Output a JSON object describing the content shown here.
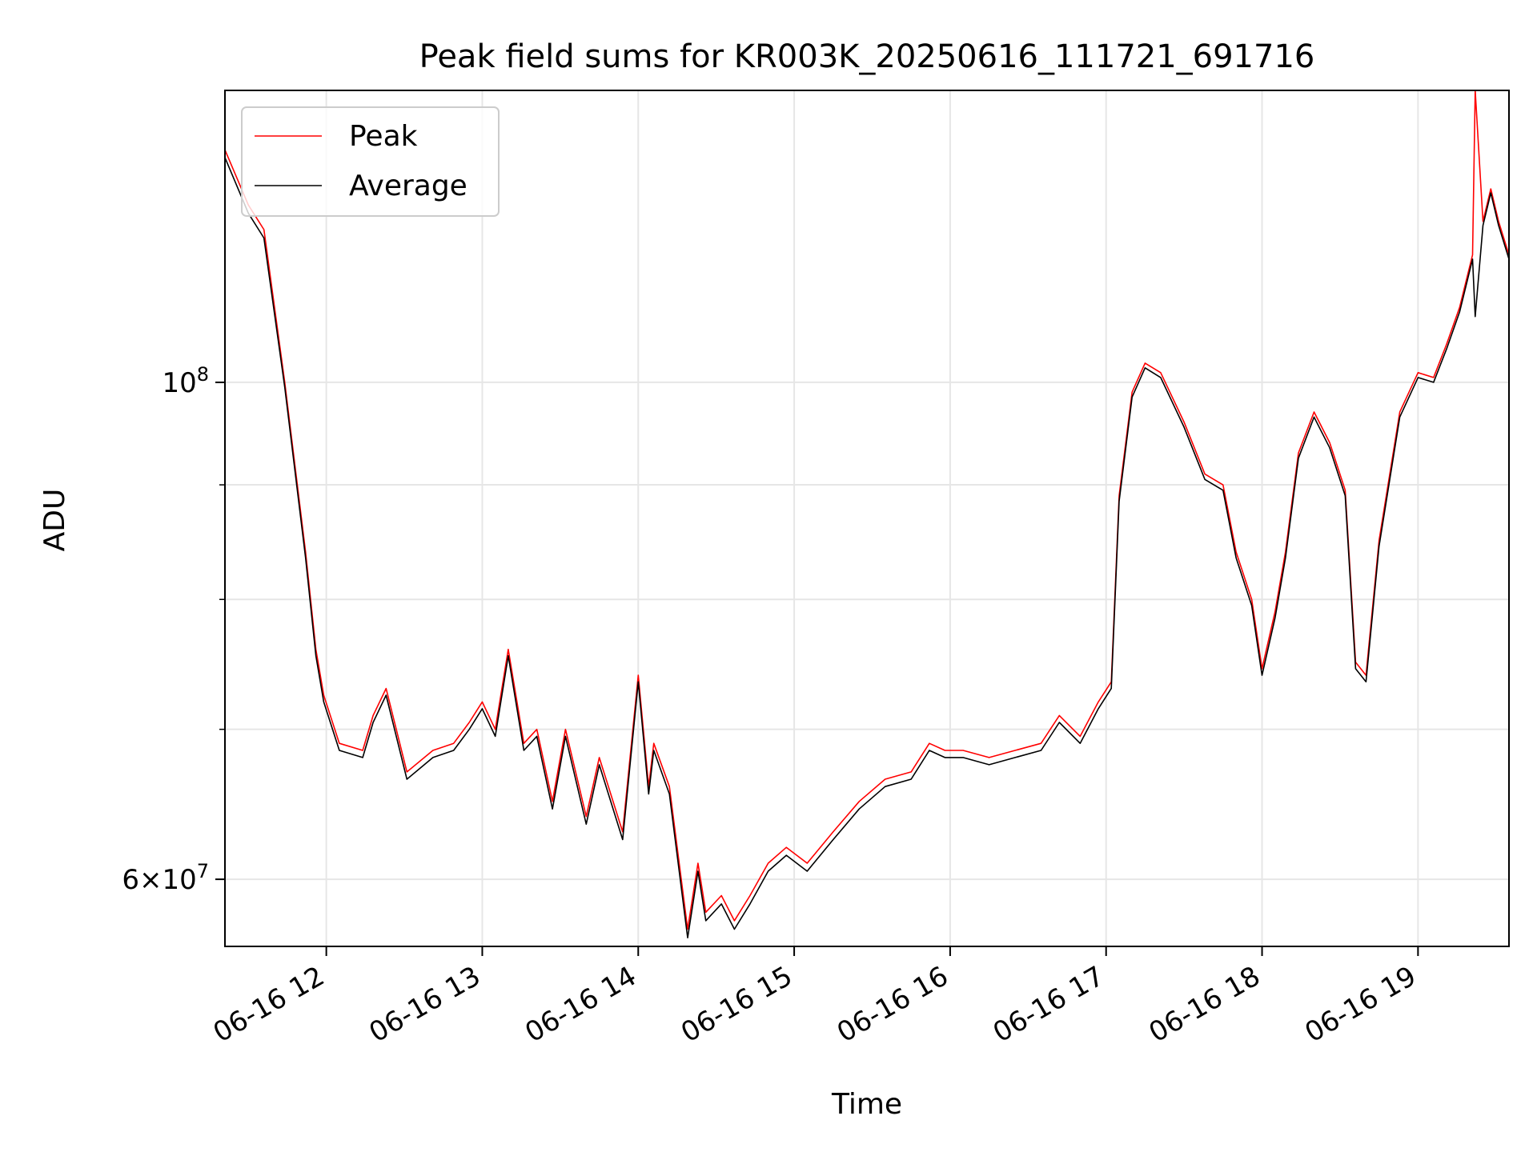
{
  "chart_data": {
    "type": "line",
    "title": "Peak field sums for KR003K_20250616_111721_691716",
    "xlabel": "Time",
    "ylabel": "ADU",
    "y_scale": "log",
    "ylim": [
      56000000,
      135000000
    ],
    "xlim": [
      "2025-06-16 11:21",
      "2025-06-16 19:35"
    ],
    "x_ticks": [
      "06-16 12",
      "06-16 13",
      "06-16 14",
      "06-16 15",
      "06-16 16",
      "06-16 17",
      "06-16 18",
      "06-16 19"
    ],
    "y_tick_labels": [
      {
        "mantissa": "6",
        "exponent": "7",
        "value": 60000000
      },
      {
        "mantissa": "",
        "exponent": "8",
        "value": 100000000
      }
    ],
    "y_minor_ticks": [
      70000000,
      80000000,
      90000000
    ],
    "grid": true,
    "legend_placement": "top-left",
    "colors": {
      "Peak": "#ff0000",
      "Average": "#000000",
      "grid": "#e6e6e6"
    },
    "series": [
      {
        "name": "Peak",
        "x": [
          "2025-06-16 11:21",
          "2025-06-16 11:30",
          "2025-06-16 11:36",
          "2025-06-16 11:44",
          "2025-06-16 11:52",
          "2025-06-16 11:56",
          "2025-06-16 11:59",
          "2025-06-16 12:05",
          "2025-06-16 12:14",
          "2025-06-16 12:18",
          "2025-06-16 12:23",
          "2025-06-16 12:31",
          "2025-06-16 12:41",
          "2025-06-16 12:49",
          "2025-06-16 12:55",
          "2025-06-16 13:00",
          "2025-06-16 13:05",
          "2025-06-16 13:10",
          "2025-06-16 13:16",
          "2025-06-16 13:21",
          "2025-06-16 13:27",
          "2025-06-16 13:32",
          "2025-06-16 13:40",
          "2025-06-16 13:45",
          "2025-06-16 13:54",
          "2025-06-16 14:00",
          "2025-06-16 14:04",
          "2025-06-16 14:06",
          "2025-06-16 14:12",
          "2025-06-16 14:19",
          "2025-06-16 14:23",
          "2025-06-16 14:26",
          "2025-06-16 14:32",
          "2025-06-16 14:37",
          "2025-06-16 14:43",
          "2025-06-16 14:50",
          "2025-06-16 14:57",
          "2025-06-16 15:05",
          "2025-06-16 15:15",
          "2025-06-16 15:25",
          "2025-06-16 15:35",
          "2025-06-16 15:45",
          "2025-06-16 15:52",
          "2025-06-16 15:58",
          "2025-06-16 16:05",
          "2025-06-16 16:15",
          "2025-06-16 16:25",
          "2025-06-16 16:35",
          "2025-06-16 16:42",
          "2025-06-16 16:50",
          "2025-06-16 16:57",
          "2025-06-16 17:02",
          "2025-06-16 17:05",
          "2025-06-16 17:10",
          "2025-06-16 17:15",
          "2025-06-16 17:21",
          "2025-06-16 17:30",
          "2025-06-16 17:38",
          "2025-06-16 17:45",
          "2025-06-16 17:50",
          "2025-06-16 17:56",
          "2025-06-16 18:00",
          "2025-06-16 18:05",
          "2025-06-16 18:09",
          "2025-06-16 18:14",
          "2025-06-16 18:20",
          "2025-06-16 18:26",
          "2025-06-16 18:32",
          "2025-06-16 18:36",
          "2025-06-16 18:40",
          "2025-06-16 18:45",
          "2025-06-16 18:53",
          "2025-06-16 19:00",
          "2025-06-16 19:06",
          "2025-06-16 19:11",
          "2025-06-16 19:16",
          "2025-06-16 19:21",
          "2025-06-16 19:22",
          "2025-06-16 19:25",
          "2025-06-16 19:28",
          "2025-06-16 19:31",
          "2025-06-16 19:35"
        ],
        "y": [
          127000000,
          120000000,
          117000000,
          100000000,
          84000000,
          76000000,
          72500000,
          69000000,
          68500000,
          71000000,
          73000000,
          67000000,
          68500000,
          69000000,
          70500000,
          72000000,
          70000000,
          76000000,
          69000000,
          70000000,
          65000000,
          70000000,
          64000000,
          68000000,
          63000000,
          74000000,
          66000000,
          69000000,
          66000000,
          57000000,
          61000000,
          58000000,
          59000000,
          57500000,
          59000000,
          61000000,
          62000000,
          61000000,
          63000000,
          65000000,
          66500000,
          67000000,
          69000000,
          68500000,
          68500000,
          68000000,
          68500000,
          69000000,
          71000000,
          69500000,
          72000000,
          73500000,
          89000000,
          99000000,
          102000000,
          101000000,
          96000000,
          91000000,
          90000000,
          84000000,
          80000000,
          74500000,
          79000000,
          84000000,
          93000000,
          97000000,
          94000000,
          89500000,
          75000000,
          74000000,
          85000000,
          97000000,
          101000000,
          100500000,
          104000000,
          108000000,
          114000000,
          135000000,
          118000000,
          122000000,
          118000000,
          114000000
        ]
      },
      {
        "name": "Average",
        "x": [
          "2025-06-16 11:21",
          "2025-06-16 11:30",
          "2025-06-16 11:36",
          "2025-06-16 11:44",
          "2025-06-16 11:52",
          "2025-06-16 11:56",
          "2025-06-16 11:59",
          "2025-06-16 12:05",
          "2025-06-16 12:14",
          "2025-06-16 12:18",
          "2025-06-16 12:23",
          "2025-06-16 12:31",
          "2025-06-16 12:41",
          "2025-06-16 12:49",
          "2025-06-16 12:55",
          "2025-06-16 13:00",
          "2025-06-16 13:05",
          "2025-06-16 13:10",
          "2025-06-16 13:16",
          "2025-06-16 13:21",
          "2025-06-16 13:27",
          "2025-06-16 13:32",
          "2025-06-16 13:40",
          "2025-06-16 13:45",
          "2025-06-16 13:54",
          "2025-06-16 14:00",
          "2025-06-16 14:04",
          "2025-06-16 14:06",
          "2025-06-16 14:12",
          "2025-06-16 14:19",
          "2025-06-16 14:23",
          "2025-06-16 14:26",
          "2025-06-16 14:32",
          "2025-06-16 14:37",
          "2025-06-16 14:43",
          "2025-06-16 14:50",
          "2025-06-16 14:57",
          "2025-06-16 15:05",
          "2025-06-16 15:15",
          "2025-06-16 15:25",
          "2025-06-16 15:35",
          "2025-06-16 15:45",
          "2025-06-16 15:52",
          "2025-06-16 15:58",
          "2025-06-16 16:05",
          "2025-06-16 16:15",
          "2025-06-16 16:25",
          "2025-06-16 16:35",
          "2025-06-16 16:42",
          "2025-06-16 16:50",
          "2025-06-16 16:57",
          "2025-06-16 17:02",
          "2025-06-16 17:05",
          "2025-06-16 17:10",
          "2025-06-16 17:15",
          "2025-06-16 17:21",
          "2025-06-16 17:30",
          "2025-06-16 17:38",
          "2025-06-16 17:45",
          "2025-06-16 17:50",
          "2025-06-16 17:56",
          "2025-06-16 18:00",
          "2025-06-16 18:05",
          "2025-06-16 18:09",
          "2025-06-16 18:14",
          "2025-06-16 18:20",
          "2025-06-16 18:26",
          "2025-06-16 18:32",
          "2025-06-16 18:36",
          "2025-06-16 18:40",
          "2025-06-16 18:45",
          "2025-06-16 18:53",
          "2025-06-16 19:00",
          "2025-06-16 19:06",
          "2025-06-16 19:11",
          "2025-06-16 19:16",
          "2025-06-16 19:21",
          "2025-06-16 19:22",
          "2025-06-16 19:25",
          "2025-06-16 19:28",
          "2025-06-16 19:31",
          "2025-06-16 19:35"
        ],
        "y": [
          126000000,
          119000000,
          116000000,
          99500000,
          83500000,
          75500000,
          72000000,
          68500000,
          68000000,
          70500000,
          72500000,
          66500000,
          68000000,
          68500000,
          70000000,
          71500000,
          69500000,
          75500000,
          68500000,
          69500000,
          64500000,
          69500000,
          63500000,
          67500000,
          62500000,
          73500000,
          65500000,
          68500000,
          65500000,
          56500000,
          60500000,
          57500000,
          58500000,
          57000000,
          58500000,
          60500000,
          61500000,
          60500000,
          62500000,
          64500000,
          66000000,
          66500000,
          68500000,
          68000000,
          68000000,
          67500000,
          68000000,
          68500000,
          70500000,
          69000000,
          71500000,
          73000000,
          88500000,
          98500000,
          101500000,
          100500000,
          95500000,
          90500000,
          89500000,
          83500000,
          79500000,
          74000000,
          78500000,
          83500000,
          92500000,
          96500000,
          93500000,
          89000000,
          74500000,
          73500000,
          84500000,
          96500000,
          100500000,
          100000000,
          103500000,
          107500000,
          113500000,
          107000000,
          117500000,
          121500000,
          117500000,
          113500000
        ]
      }
    ]
  }
}
